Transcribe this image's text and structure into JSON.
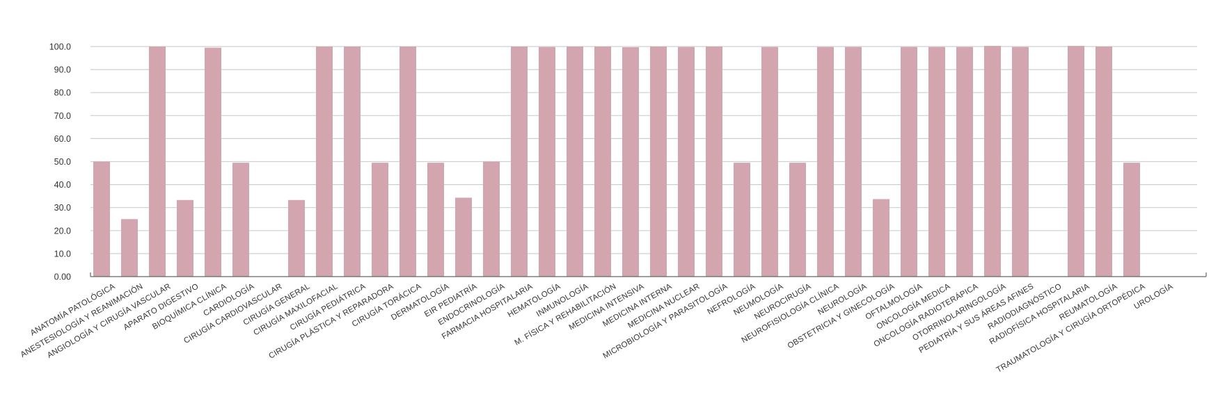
{
  "chart_data": {
    "type": "bar",
    "title": "",
    "xlabel": "",
    "ylabel": "",
    "ylim": [
      0,
      100
    ],
    "yticks": [
      "0.00",
      "10.0",
      "20.0",
      "30.0",
      "40.0",
      "50.0",
      "60.0",
      "70.0",
      "80.0",
      "90.0",
      "100.0"
    ],
    "grid": true,
    "legend": "none",
    "bar_color": "#d3a5ae",
    "categories": [
      "ANATOMÍA PATOLÓGICA",
      "ANESTESIOLOGÍA Y REANIMACIÓN",
      "ANGIOLOGÍA Y CIRUGÍA VASCULAR",
      "APARATO DIGESTIVO",
      "BIOQUÍMICA CLÍNICA",
      "CARDIOLOGÍA",
      "CIRUGÍA CARDIOVASCULAR",
      "CIRUGÍA GENERAL",
      "CIRUGÍA MAXILOFACIAL",
      "CIRUGÍA PEDIÁTRICA",
      "CIRUGÍA PLÁSTICA Y REPARADORA",
      "CIRUGÍA TORÁCICA",
      "DERMATOLOGÍA",
      "EIR PEDIATRÍA",
      "ENDOCRINOLOGÍA",
      "FARMACIA HOSPITALARIA",
      "HEMATOLOGÍA",
      "INMUNOLOGÍA",
      "M. FÍSICA Y REHABILITACIÓN",
      "MEDICINA INTENSIVA",
      "MEDICINA INTERNA",
      "MEDICINA NUCLEAR",
      "MICROBIOLOGÍA Y PARASITOLOGÍA",
      "NEFROLOGÍA",
      "NEUMOLOGÍA",
      "NEUROCIRUGÍA",
      "NEUROFISIOLOGÍA CLÍNICA",
      "NEUROLOGÍA",
      "OBSTETRICIA Y GINECOLOGÍA",
      "OFTALMOLOGÍA",
      "ONCOLOGÍA MEDICA",
      "ONCOLOGÍA RADIOTERÁPICA",
      "OTORRINOLARINGOLOGÍA",
      "PEDIATRÍA Y SUS ÁREAS AFINES",
      "RADIODIAGNÓSTICO",
      "RADIOFÍSICA HOSPITALARIA",
      "REUMATOLOGÍA",
      "TRAUMATOLOGÍA Y CIRUGÍA ORTOPÉDICA",
      "UROLOGÍA"
    ],
    "values": [
      50,
      25,
      100,
      33.3,
      99.5,
      49.5,
      0,
      33.3,
      100,
      100,
      49.5,
      100,
      49.5,
      34.3,
      50,
      100,
      99.8,
      100,
      100,
      99.7,
      100,
      99.8,
      100,
      49.5,
      99.8,
      49.5,
      99.8,
      99.8,
      33.7,
      99.8,
      99.8,
      99.8,
      100.3,
      99.8,
      0,
      100.3,
      100,
      49.5,
      0
    ]
  }
}
